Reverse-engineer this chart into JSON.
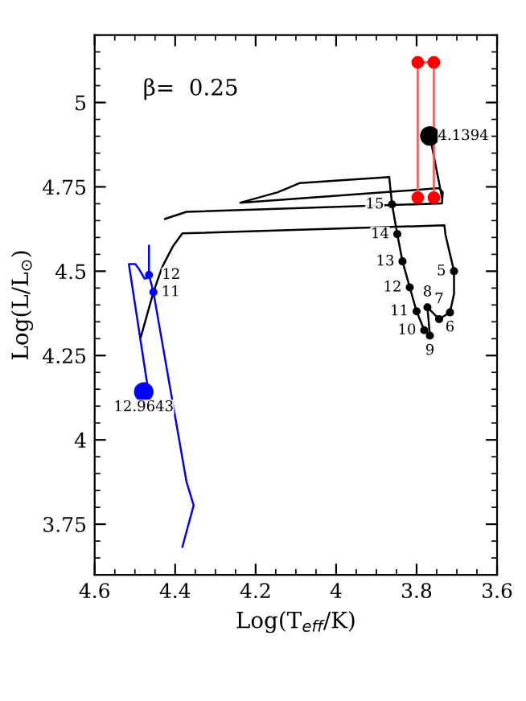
{
  "chart_data": {
    "type": "line",
    "xlabel": "Log(T$_{eff}$/K)",
    "ylabel": "Log(L/L$_{⊙}$)",
    "xlim": [
      4.6,
      3.6
    ],
    "ylim": [
      3.6,
      5.2
    ],
    "xticks": [
      4.6,
      4.4,
      4.2,
      4,
      3.8,
      3.6
    ],
    "yticks": [
      3.75,
      4,
      4.25,
      4.5,
      4.75,
      5
    ],
    "grid": false,
    "legend": false,
    "series": [
      {
        "color": "#0000ff",
        "x": [
          4.382,
          4.354,
          4.372,
          4.454,
          4.465,
          4.465,
          4.465,
          4.476,
          4.489,
          4.499,
          4.515,
          4.465
        ],
        "values": [
          3.683,
          3.806,
          3.877,
          4.438,
          4.489,
          4.576,
          4.481,
          4.478,
          4.505,
          4.521,
          4.521,
          4.131
        ]
      },
      {
        "color": "#000000",
        "x": [
          4.485,
          4.454,
          4.432,
          4.405,
          4.382,
          3.731,
          3.728,
          3.707,
          3.707,
          3.717,
          3.744,
          3.773,
          3.767,
          3.781,
          3.8,
          3.817,
          3.835,
          3.848,
          3.861,
          3.868,
          4.091,
          4.145,
          4.238,
          3.744,
          3.735,
          3.737,
          4.372,
          4.425,
          null,
          3.737,
          3.767
        ],
        "values": [
          4.306,
          4.438,
          4.513,
          4.575,
          4.612,
          4.636,
          4.607,
          4.5,
          4.433,
          4.378,
          4.358,
          4.393,
          4.309,
          4.325,
          4.381,
          4.452,
          4.529,
          4.61,
          4.698,
          4.779,
          4.761,
          4.734,
          4.703,
          4.746,
          4.734,
          4.701,
          4.676,
          4.655,
          null,
          4.719,
          4.901
        ]
      },
      {
        "color": "#ff5050",
        "x": [
          3.797,
          3.797,
          3.757,
          3.757
        ],
        "values": [
          4.718,
          5.119,
          5.119,
          4.718
        ]
      },
      {
        "type": "scatter",
        "color": "#ff0000",
        "marker": "circle",
        "x": [
          3.797,
          3.797,
          3.757,
          3.757
        ],
        "values": [
          4.718,
          5.119,
          5.119,
          4.718
        ]
      },
      {
        "type": "scatter",
        "color": "#000000",
        "marker": "circle",
        "x": [
          3.707,
          3.717,
          3.744,
          3.773,
          3.767,
          3.781,
          3.8,
          3.817,
          3.835,
          3.848,
          3.861
        ],
        "values": [
          4.5,
          4.378,
          4.358,
          4.393,
          4.309,
          4.325,
          4.381,
          4.452,
          4.529,
          4.61,
          4.698
        ]
      },
      {
        "type": "scatter",
        "color": "#0000ff",
        "marker": "circle",
        "x": [
          4.465,
          4.454
        ],
        "values": [
          4.489,
          4.438
        ]
      },
      {
        "type": "bubble",
        "colors": [
          "#000000",
          "#0000ff"
        ],
        "marker": "circle",
        "x": [
          3.767,
          4.478
        ],
        "values": [
          4.901,
          4.142
        ],
        "sizes": [
          1,
          1
        ]
      }
    ],
    "annotations": [
      "β=  0.25",
      {
        "text": "4.1394",
        "x": 3.767,
        "y": 4.901
      },
      {
        "text": "5",
        "x": 3.707,
        "y": 4.5
      },
      {
        "text": "6",
        "x": 3.717,
        "y": 4.378
      },
      {
        "text": "7",
        "x": 3.744,
        "y": 4.358
      },
      {
        "text": "8",
        "x": 3.773,
        "y": 4.393
      },
      {
        "text": "9",
        "x": 3.767,
        "y": 4.309
      },
      {
        "text": "10",
        "x": 3.781,
        "y": 4.325
      },
      {
        "text": "11",
        "x": 3.8,
        "y": 4.381
      },
      {
        "text": "12",
        "x": 3.817,
        "y": 4.452
      },
      {
        "text": "13",
        "x": 3.835,
        "y": 4.529
      },
      {
        "text": "14",
        "x": 3.848,
        "y": 4.61
      },
      {
        "text": "15",
        "x": 3.861,
        "y": 4.698
      },
      {
        "text": "12",
        "x": 4.465,
        "y": 4.489
      },
      {
        "text": "11",
        "x": 4.454,
        "y": 4.438
      },
      {
        "text": "12.9643",
        "x": 4.478,
        "y": 4.142
      }
    ]
  }
}
